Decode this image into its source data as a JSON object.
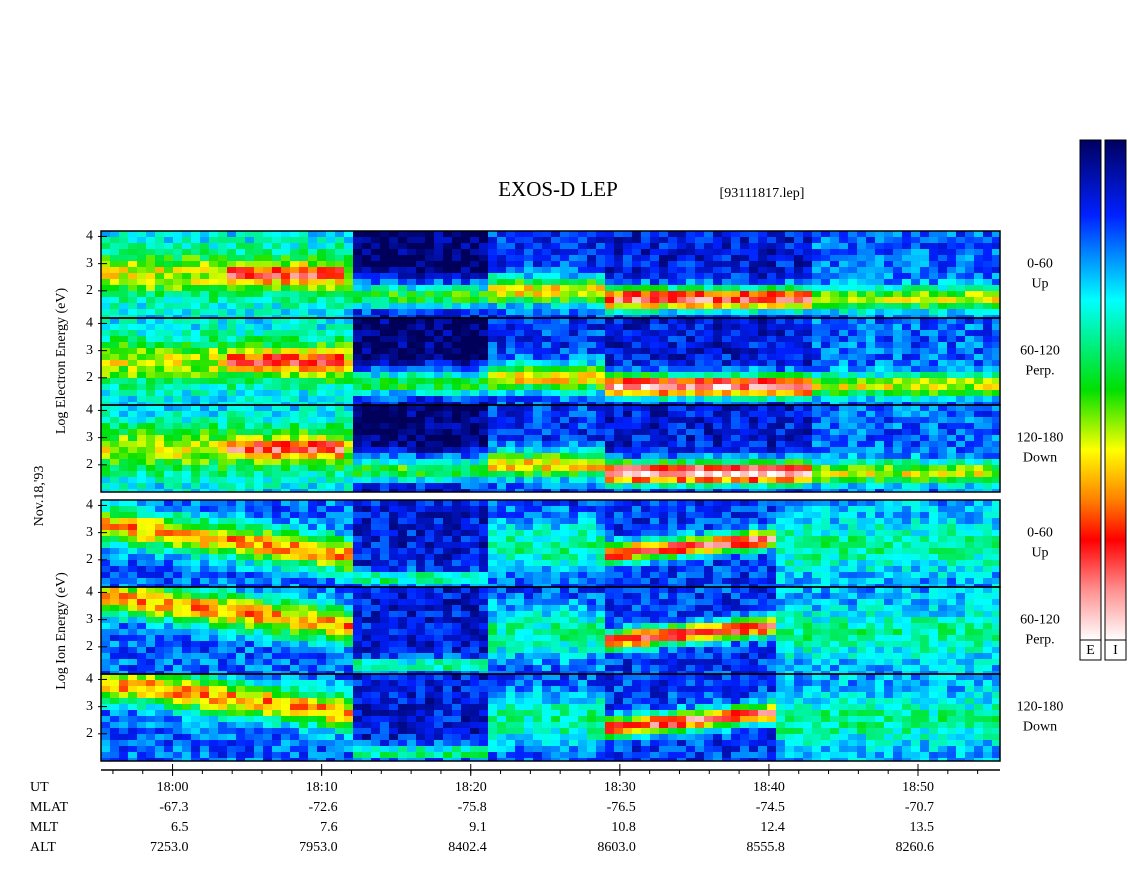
{
  "title": "EXOS-D LEP",
  "file": "[93111817.lep]",
  "electron_axis_label": "Log Electron Energy (eV)",
  "date": "Nov.18,'93",
  "ion_axis_label": "Log Ion Energy (eV)",
  "panels": [
    {
      "angle": "0-60",
      "direction": "Up"
    },
    {
      "angle": "60-120",
      "direction": "Perp."
    },
    {
      "angle": "120-180",
      "direction": "Down"
    },
    {
      "angle": "0-60",
      "direction": "Up"
    },
    {
      "angle": "60-120",
      "direction": "Perp."
    },
    {
      "angle": "120-180",
      "direction": "Down"
    }
  ],
  "ylim": [
    1,
    4.2
  ],
  "yticks": [
    2,
    3,
    4
  ],
  "xlim": [
    1075.2,
    1135.5
  ],
  "xticks": [
    {
      "value": 1080,
      "label": "18:00"
    },
    {
      "value": 1090,
      "label": "18:10"
    },
    {
      "value": 1100,
      "label": "18:20"
    },
    {
      "value": 1110,
      "label": "18:30"
    },
    {
      "value": 1120,
      "label": "18:40"
    },
    {
      "value": 1130,
      "label": "18:50"
    }
  ],
  "ephemeris": [
    {
      "name": "UT"
    },
    {
      "name": "MLAT",
      "values": [
        "-67.3",
        "-72.6",
        "-75.8",
        "-76.5",
        "-74.5",
        "-70.7"
      ]
    },
    {
      "name": "MLT",
      "values": [
        "6.5",
        "7.6",
        "9.1",
        "10.8",
        "12.4",
        "13.5"
      ]
    },
    {
      "name": "ALT",
      "values": [
        "7253.0",
        "7953.0",
        "8402.4",
        "8603.0",
        "8555.8",
        "8260.6"
      ]
    }
  ],
  "colorbars": [
    "E",
    "I"
  ]
}
